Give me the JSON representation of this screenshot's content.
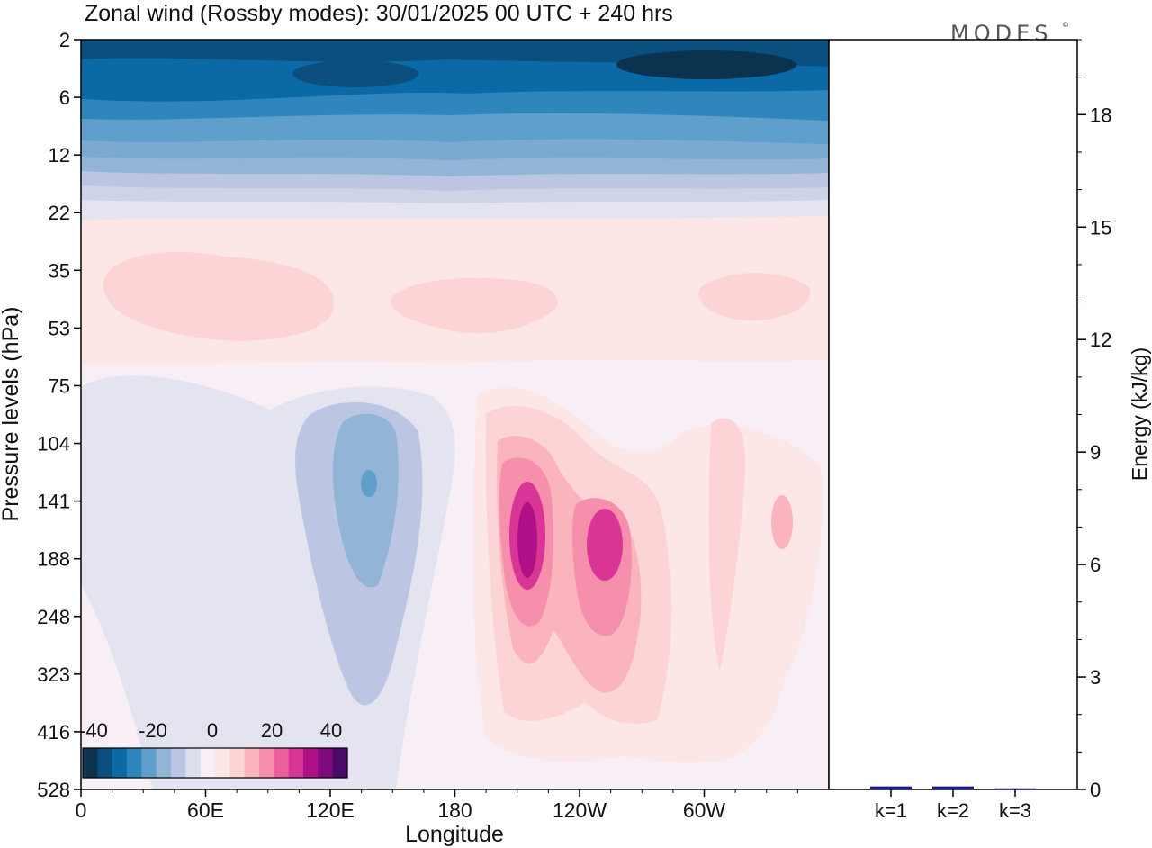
{
  "chart_data": {
    "type": "heatmap",
    "title": "Zonal wind (Rossby modes):  30/01/2025  00 UTC  + 240 hrs",
    "brand": "MODES",
    "brand_mark": "©",
    "xlabel": "Longitude",
    "ylabel": "Pressure levels (hPa)",
    "x_ticks": [
      "0",
      "60E",
      "120E",
      "180",
      "120W",
      "60W"
    ],
    "y_ticks": [
      "2",
      "6",
      "12",
      "22",
      "35",
      "53",
      "75",
      "104",
      "141",
      "188",
      "248",
      "323",
      "416",
      "528"
    ],
    "colorbar": {
      "tick_labels": [
        "-40",
        "-20",
        "0",
        "20",
        "40"
      ],
      "colors": [
        "#0b3350",
        "#0a4f7e",
        "#0b6aa6",
        "#2f86bd",
        "#5f9fcc",
        "#92b5d7",
        "#bcc6e2",
        "#dcdded",
        "#f7eef6",
        "#fde7e6",
        "#fdd4d6",
        "#fbb4be",
        "#f68fab",
        "#ec5f9f",
        "#d83596",
        "#b01087",
        "#7f0a7d",
        "#4a0a6a"
      ]
    },
    "contour_regions": [
      {
        "value": -22.5,
        "region": "0-360, 2-12 hPa (upper stratosphere)"
      },
      {
        "value": -35,
        "region": "150-190E and 75-130W near 3 hPa"
      },
      {
        "value": 4,
        "region": "0-360, 25-75 hPa"
      },
      {
        "value": 8,
        "region": "10-70E, 45-100E, 140-170W, 50-100W near 35-53 hPa"
      },
      {
        "value": -4,
        "region": "5-170E, 75-500 hPa"
      },
      {
        "value": -12,
        "region": "120-150E, 100-330 hPa"
      },
      {
        "value": -18,
        "region": "135-140E near 141 hPa"
      },
      {
        "value": 8,
        "region": "165-20W, 75-450 hPa"
      },
      {
        "value": 22,
        "region": "155-180W, 120-300 hPa"
      },
      {
        "value": 32,
        "region": "160-175W, 150-230 hPa"
      },
      {
        "value": 26,
        "region": "120-132W, 141-230 hPa"
      },
      {
        "value": 14,
        "region": "40-60W and 10-30W, 130-300 hPa"
      }
    ],
    "energy_panel": {
      "ylabel": "Energy (kJ/kg)",
      "y_ticks": [
        "0",
        "3",
        "6",
        "9",
        "12",
        "15",
        "18"
      ],
      "ylim": [
        0,
        20
      ],
      "categories": [
        "k=1",
        "k=2",
        "k=3"
      ],
      "values": [
        0.08,
        0.08,
        0.03
      ],
      "bar_color": "#1a1a8c"
    }
  }
}
